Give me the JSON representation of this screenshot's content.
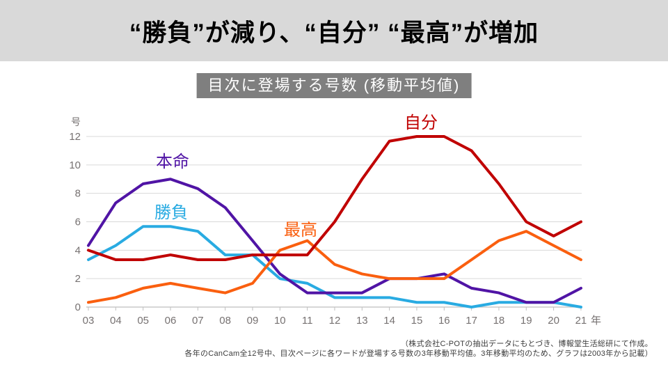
{
  "header": {
    "title": "“勝負”が減り、“自分” “最高”が増加"
  },
  "chart_data": {
    "type": "line",
    "title": "目次に登場する号数 (移動平均値)",
    "y_unit_label": "号",
    "x_suffix": "年",
    "xlabel": "",
    "ylabel": "号",
    "ylim": [
      0,
      12
    ],
    "yticks": [
      0,
      2,
      4,
      6,
      8,
      10,
      12
    ],
    "grid": true,
    "legend_position": "inline-labels",
    "categories": [
      "03",
      "04",
      "05",
      "06",
      "07",
      "08",
      "09",
      "10",
      "11",
      "12",
      "13",
      "14",
      "15",
      "16",
      "17",
      "18",
      "19",
      "20",
      "21"
    ],
    "series": [
      {
        "key": "shoubu",
        "name": "勝負",
        "color": "#29abe2",
        "values": [
          3.33,
          4.33,
          5.67,
          5.67,
          5.33,
          3.67,
          3.67,
          2.0,
          1.67,
          0.67,
          0.67,
          0.67,
          0.33,
          0.33,
          0.0,
          0.33,
          0.33,
          0.33,
          0.0
        ]
      },
      {
        "key": "honmei",
        "name": "本命",
        "color": "#5014a5",
        "values": [
          4.33,
          7.33,
          8.67,
          9.0,
          8.33,
          7.0,
          4.67,
          2.33,
          1.0,
          1.0,
          1.0,
          2.0,
          2.0,
          2.33,
          1.33,
          1.0,
          0.33,
          0.33,
          1.33
        ]
      },
      {
        "key": "saikou",
        "name": "最高",
        "color": "#fa5f0f",
        "values": [
          0.33,
          0.67,
          1.33,
          1.67,
          1.33,
          1.0,
          1.67,
          4.0,
          4.67,
          3.0,
          2.33,
          2.0,
          2.0,
          2.0,
          3.33,
          4.67,
          5.33,
          4.33,
          3.33
        ]
      },
      {
        "key": "jibun",
        "name": "自分",
        "color": "#c00000",
        "values": [
          4.0,
          3.33,
          3.33,
          3.67,
          3.33,
          3.33,
          3.67,
          3.67,
          3.67,
          6.0,
          9.0,
          11.67,
          12.0,
          12.0,
          11.0,
          8.67,
          6.0,
          5.0,
          6.0
        ]
      }
    ]
  },
  "footnote": {
    "line1": "（株式会社C-POTの抽出データにもとづき、博報堂生活総研にて作成。",
    "line2": "各年のCanCam全12号中、目次ページに各ワードが登場する号数の3年移動平均値。3年移動平均のため、グラフは2003年から記載）"
  }
}
